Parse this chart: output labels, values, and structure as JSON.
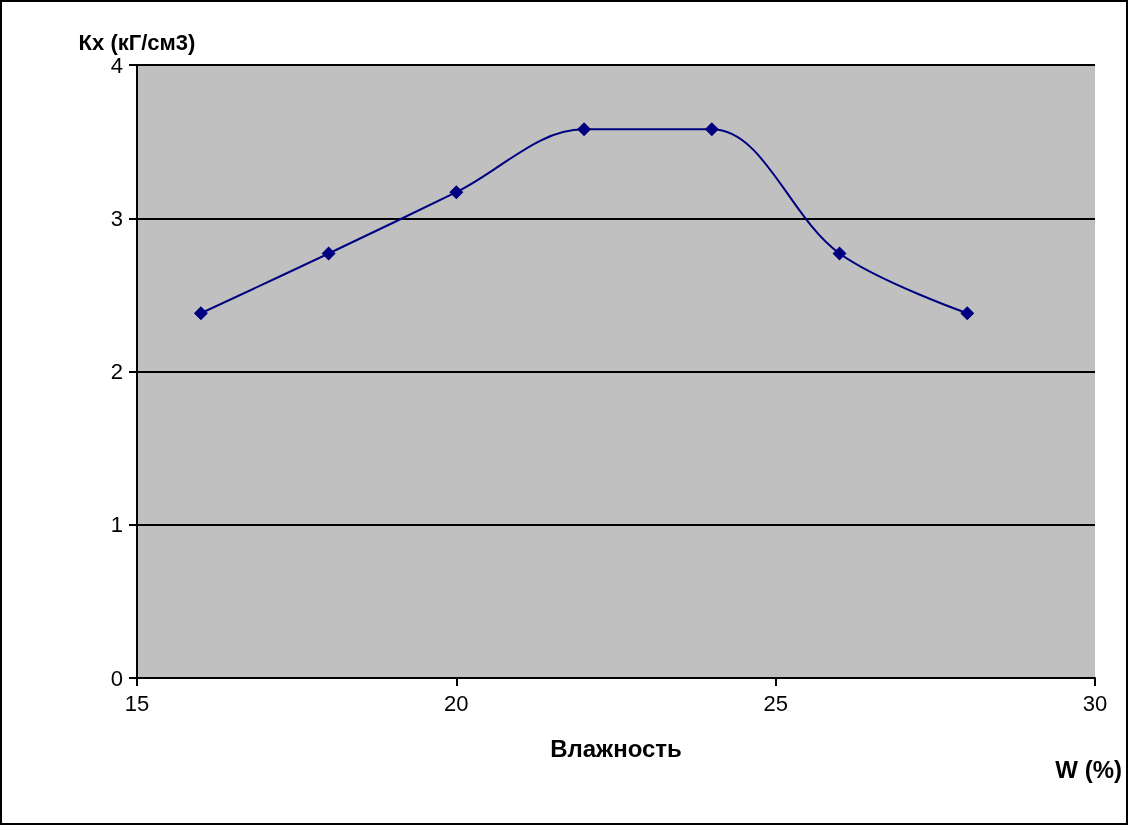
{
  "chart_data": {
    "type": "line",
    "xlabel": "Влажность",
    "ylabel": "Кх (кГ/см3)",
    "annotations": [
      "W (%)"
    ],
    "x": [
      16,
      18,
      20,
      22,
      24,
      26,
      28
    ],
    "series": [
      {
        "color": "#000080",
        "values": [
          2.38,
          2.77,
          3.17,
          3.58,
          3.58,
          2.77,
          2.38
        ]
      }
    ],
    "xlim": [
      15,
      30
    ],
    "xticks": [
      15,
      20,
      25,
      30
    ],
    "ylim": [
      0,
      4
    ],
    "yticks": [
      0,
      1,
      2,
      3,
      4
    ],
    "grid": "y",
    "marker": "diamond",
    "line_style": "solid"
  }
}
